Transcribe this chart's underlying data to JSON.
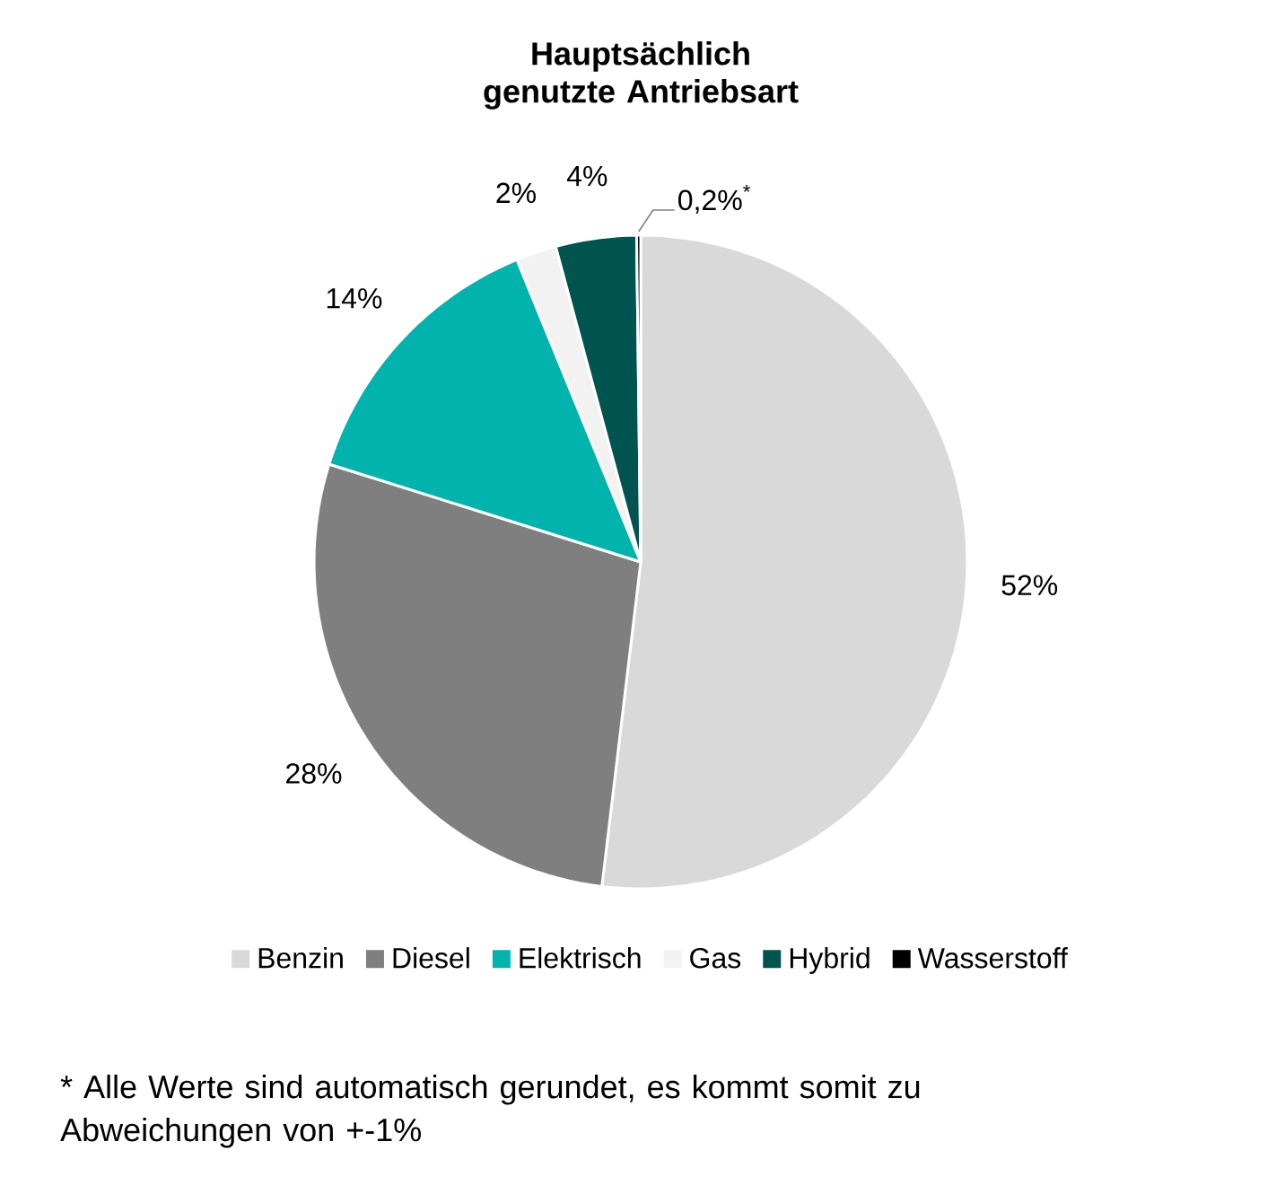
{
  "chart_data": {
    "type": "pie",
    "title": "Hauptsächlich genutzte Antriebsart",
    "categories": [
      "Benzin",
      "Diesel",
      "Elektrisch",
      "Gas",
      "Hybrid",
      "Wasserstoff"
    ],
    "values": [
      52,
      28,
      14,
      2,
      4,
      0.2
    ],
    "value_labels": [
      "52%",
      "28%",
      "14%",
      "2%",
      "4%",
      "0,2%$^{*}$"
    ],
    "colors": [
      "#d9d9d9",
      "#7f7f7f",
      "#00b4ad",
      "#f2f2f2",
      "#005450",
      "#000000"
    ],
    "legend": "bottom",
    "annotations": [
      "* Alle Werte sind automatisch gerundet, es kommt somit zu Abweichungen von +-1%"
    ]
  }
}
